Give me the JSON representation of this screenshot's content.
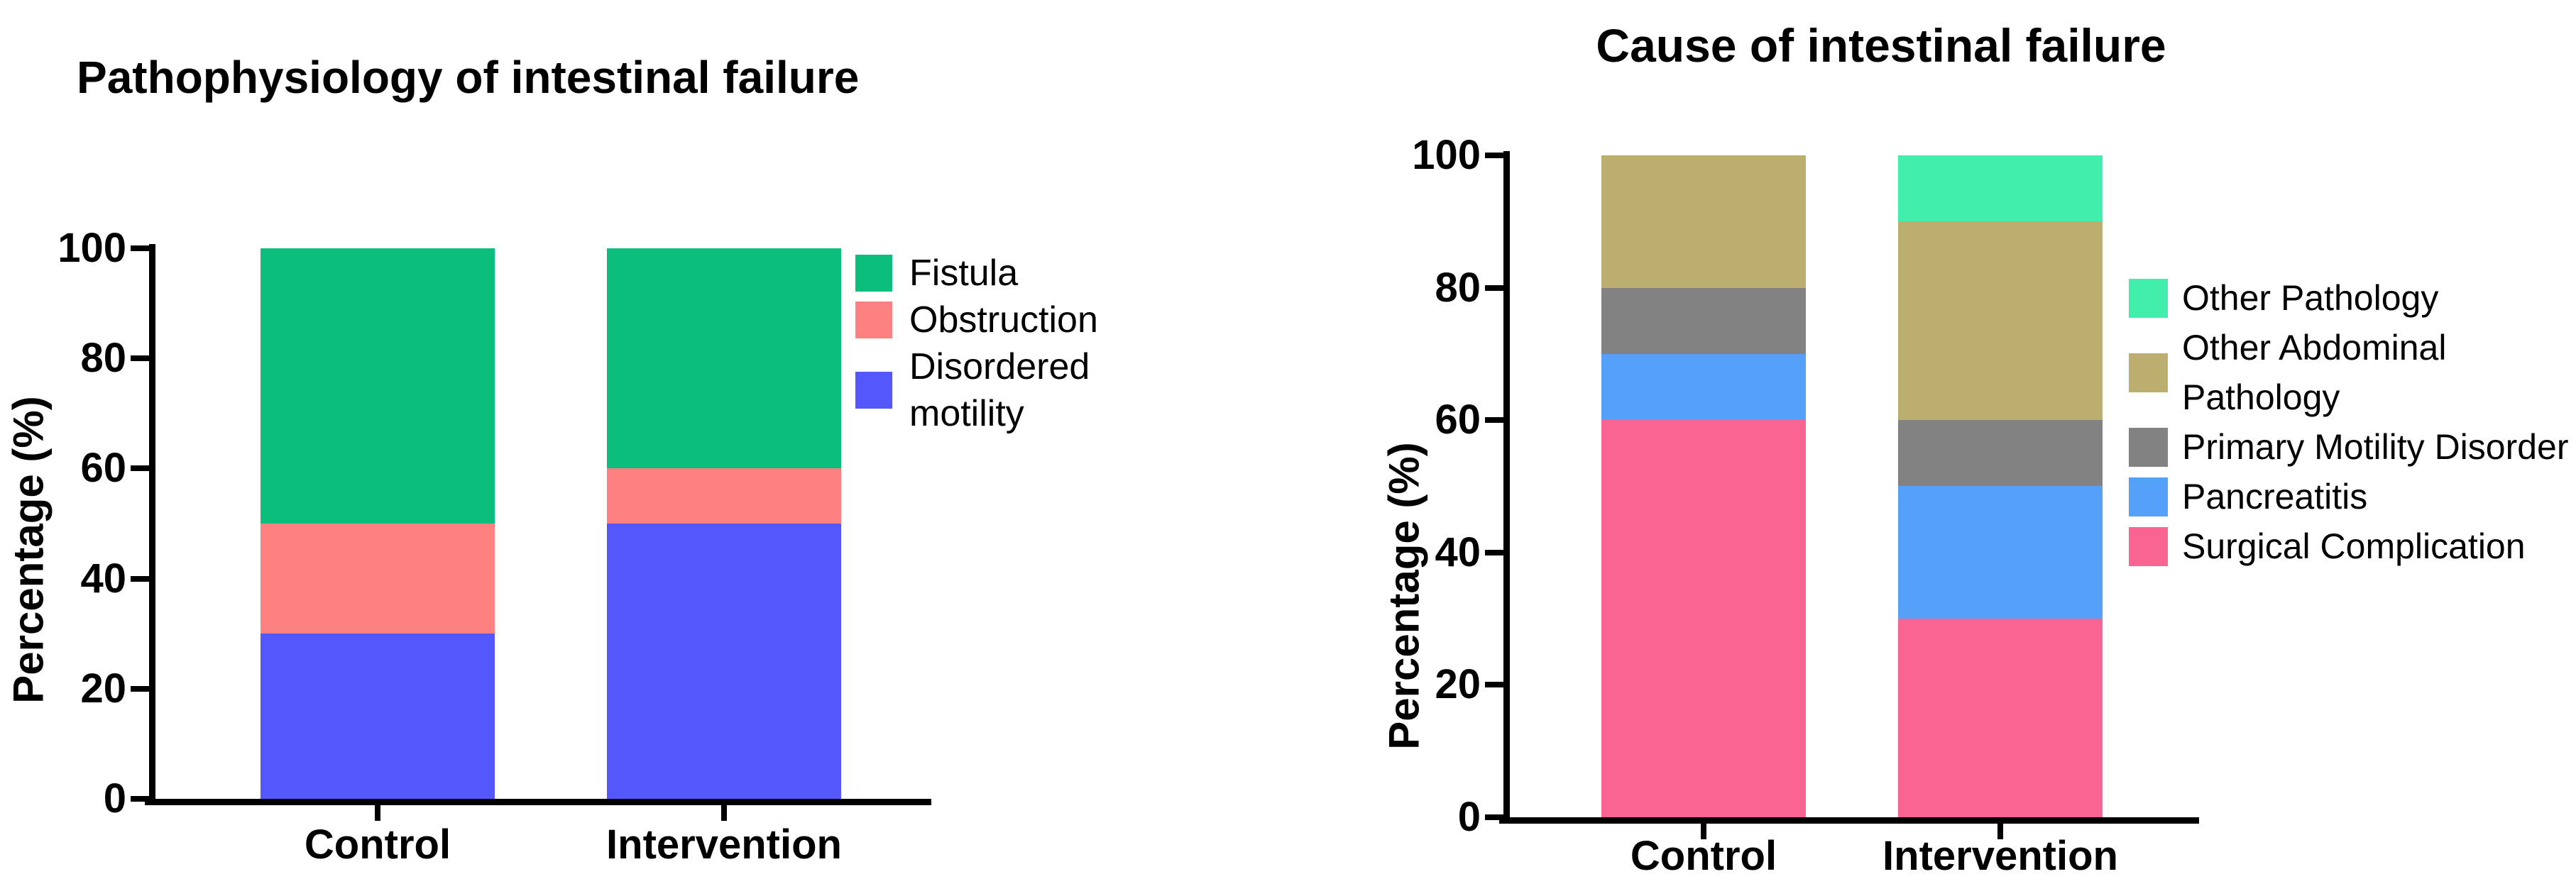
{
  "page": {
    "background_color": "#ffffff",
    "text_color": "#000000",
    "axis_color": "#000000"
  },
  "chart_data": [
    {
      "type": "bar",
      "stacked": true,
      "title": "Pathophysiology of intestinal failure",
      "xlabel": "",
      "ylabel": "Percentage (%)",
      "ylim": [
        0,
        100
      ],
      "yticks": [
        0,
        20,
        40,
        60,
        80,
        100
      ],
      "grid": false,
      "legend_position": "right",
      "categories": [
        "Control",
        "Intervention"
      ],
      "series": [
        {
          "name": "Disordered motility",
          "color": "#5457FA",
          "values": [
            30,
            50
          ]
        },
        {
          "name": "Obstruction",
          "color": "#FD8181",
          "values": [
            20,
            10
          ]
        },
        {
          "name": "Fistula",
          "color": "#0BBE7B",
          "values": [
            50,
            40
          ]
        }
      ],
      "legend": [
        {
          "label": "Fistula",
          "color": "#0BBE7B"
        },
        {
          "label": "Obstruction",
          "color": "#FD8181"
        },
        {
          "label": "Disordered\nmotility",
          "color": "#5457FA"
        }
      ]
    },
    {
      "type": "bar",
      "stacked": true,
      "title": "Cause of intestinal failure",
      "xlabel": "",
      "ylabel": "Percentage (%)",
      "ylim": [
        0,
        100
      ],
      "yticks": [
        0,
        20,
        40,
        60,
        80,
        100
      ],
      "grid": false,
      "legend_position": "right",
      "categories": [
        "Control",
        "Intervention"
      ],
      "series": [
        {
          "name": "Surgical Complication",
          "color": "#F96492",
          "values": [
            60,
            30
          ]
        },
        {
          "name": "Pancreatitis",
          "color": "#55A0F8",
          "values": [
            10,
            20
          ]
        },
        {
          "name": "Primary Motility Disorder",
          "color": "#828282",
          "values": [
            10,
            10
          ]
        },
        {
          "name": "Other Abdominal Pathology",
          "color": "#BCAE6E",
          "values": [
            20,
            30
          ]
        },
        {
          "name": "Other Pathology",
          "color": "#42EEAC",
          "values": [
            0,
            10
          ]
        }
      ],
      "legend": [
        {
          "label": "Other Pathology",
          "color": "#42EEAC"
        },
        {
          "label": "Other Abdominal\nPathology",
          "color": "#BCAE6E"
        },
        {
          "label": "Primary Motility Disorder",
          "color": "#828282"
        },
        {
          "label": "Pancreatitis",
          "color": "#55A0F8"
        },
        {
          "label": "Surgical Complication",
          "color": "#F96492"
        }
      ]
    }
  ]
}
